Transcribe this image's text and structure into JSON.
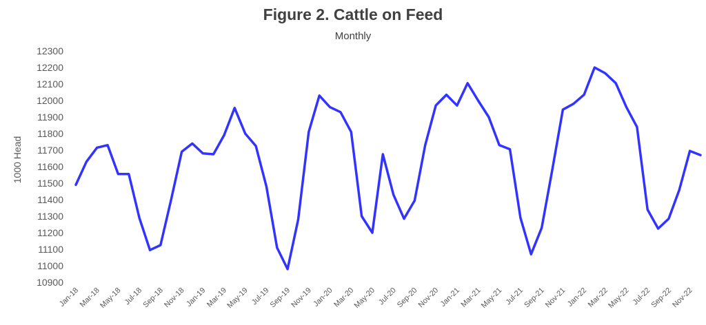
{
  "chart_data": {
    "type": "line",
    "title": "Figure 2.  Cattle on Feed",
    "subtitle": "Monthly",
    "ylabel": "1000 Head",
    "ylim": [
      10900,
      12300
    ],
    "yticks": [
      10900,
      11000,
      11100,
      11200,
      11300,
      11400,
      11500,
      11600,
      11700,
      11800,
      11900,
      12000,
      12100,
      12200,
      12300
    ],
    "xtick_labels": [
      "Jan-18",
      "Mar-18",
      "May-18",
      "Jul-18",
      "Sep-18",
      "Nov-18",
      "Jan-19",
      "Mar-19",
      "May-19",
      "Jul-19",
      "Sep-19",
      "Nov-19",
      "Jan-20",
      "Mar-20",
      "May-20",
      "Jul-20",
      "Sep-20",
      "Nov-20",
      "Jan-21",
      "Mar-21",
      "May-21",
      "Jul-21",
      "Sep-21",
      "Nov-21",
      "Jan-22",
      "Mar-22",
      "May-22",
      "Jul-22",
      "Sep-22",
      "Nov-22"
    ],
    "line_color": "#3333ff",
    "grid": false,
    "series": [
      {
        "x": [
          "Jan-18",
          "Feb-18",
          "Mar-18",
          "Apr-18",
          "May-18",
          "Jun-18",
          "Jul-18",
          "Aug-18",
          "Sep-18",
          "Oct-18",
          "Nov-18",
          "Dec-18",
          "Jan-19",
          "Feb-19",
          "Mar-19",
          "Apr-19",
          "May-19",
          "Jun-19",
          "Jul-19",
          "Aug-19",
          "Sep-19",
          "Oct-19",
          "Nov-19",
          "Dec-19",
          "Jan-20",
          "Feb-20",
          "Mar-20",
          "Apr-20",
          "May-20",
          "Jun-20",
          "Jul-20",
          "Aug-20",
          "Sep-20",
          "Oct-20",
          "Nov-20",
          "Dec-20",
          "Jan-21",
          "Feb-21",
          "Mar-21",
          "Apr-21",
          "May-21",
          "Jun-21",
          "Jul-21",
          "Aug-21",
          "Sep-21",
          "Oct-21",
          "Nov-21",
          "Dec-21",
          "Jan-22",
          "Feb-22",
          "Mar-22",
          "Apr-22",
          "May-22",
          "Jun-22",
          "Jul-22",
          "Aug-22",
          "Sep-22",
          "Oct-22",
          "Nov-22",
          "Dec-22"
        ],
        "values": [
          11490,
          11630,
          11715,
          11730,
          11555,
          11555,
          11290,
          11095,
          11125,
          11400,
          11690,
          11740,
          11680,
          11675,
          11790,
          11955,
          11800,
          11725,
          11480,
          11110,
          10980,
          11280,
          11810,
          12030,
          11960,
          11930,
          11810,
          11300,
          11200,
          11675,
          11430,
          11285,
          11395,
          11730,
          11970,
          12035,
          11970,
          12105,
          12000,
          11900,
          11730,
          11705,
          11290,
          11070,
          11230,
          11580,
          11945,
          11980,
          12035,
          12200,
          12165,
          12105,
          11960,
          11840,
          11340,
          11225,
          11285,
          11460,
          11695,
          11670
        ]
      }
    ]
  }
}
